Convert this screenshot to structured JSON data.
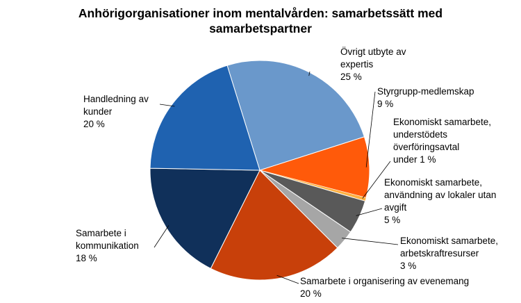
{
  "chart_data": {
    "type": "pie",
    "title": "Anhörigorganisationer inom mentalvården: samarbetssätt med samarbetspartner",
    "categories": [
      "Övrigt utbyte av expertis",
      "Styrgrupp-medlemskap",
      "Ekonomiskt samarbete, understödets överföringsavtal",
      "Ekonomiskt samarbete, användning av lokaler utan avgift",
      "Ekonomiskt samarbete, arbetskraftresurser",
      "Samarbete i organisering av evenemang",
      "Samarbete i kommunikation",
      "Handledning av kunder"
    ],
    "values": [
      25,
      9,
      0.5,
      5,
      3,
      20,
      18,
      20
    ],
    "value_labels": [
      "25 %",
      "9 %",
      "under 1 %",
      "5 %",
      "3 %",
      "20 %",
      "18 %",
      "20 %"
    ],
    "colors": [
      "#6a98cb",
      "#ff5a0a",
      "#ffb040",
      "#595959",
      "#a6a6a6",
      "#c8400a",
      "#10305a",
      "#1f62b0"
    ]
  }
}
